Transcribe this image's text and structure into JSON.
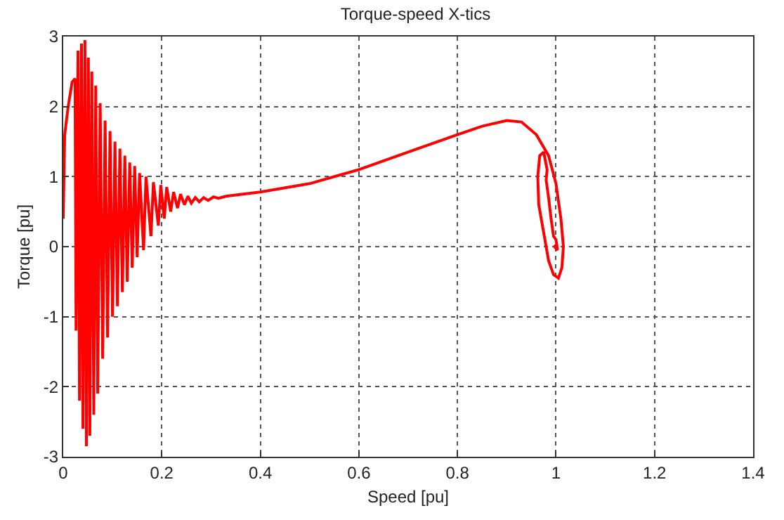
{
  "chart_data": {
    "type": "line",
    "title": "Torque-speed X-tics",
    "xlabel": "Speed [pu]",
    "ylabel": "Torque [pu]",
    "xlim": [
      0,
      1.4
    ],
    "xticks": [
      0,
      0.2,
      0.4,
      0.6,
      0.8,
      1,
      1.2,
      1.4
    ],
    "ylim": [
      -3,
      3
    ],
    "yticks": [
      -3,
      -2,
      -1,
      0,
      1,
      2,
      3
    ],
    "grid": true,
    "marker": "none",
    "line_style": "solid",
    "series": [
      {
        "color": "#ff0000",
        "x": [
          0,
          0.003,
          0.01,
          0.018,
          0.024,
          0.026,
          0.03,
          0.033,
          0.037,
          0.04,
          0.044,
          0.047,
          0.051,
          0.054,
          0.058,
          0.062,
          0.066,
          0.07,
          0.075,
          0.08,
          0.085,
          0.09,
          0.095,
          0.1,
          0.105,
          0.11,
          0.115,
          0.12,
          0.125,
          0.13,
          0.135,
          0.14,
          0.145,
          0.15,
          0.155,
          0.163,
          0.168,
          0.178,
          0.183,
          0.193,
          0.198,
          0.205,
          0.21,
          0.218,
          0.224,
          0.232,
          0.238,
          0.246,
          0.253,
          0.26,
          0.268,
          0.276,
          0.285,
          0.294,
          0.305,
          0.315,
          0.33,
          0.4,
          0.5,
          0.6,
          0.7,
          0.8,
          0.85,
          0.9,
          0.93,
          0.96,
          0.985,
          1.0,
          1.01,
          1.015,
          1.012,
          1.005,
          0.995,
          0.985,
          0.975,
          0.965,
          0.963,
          0.967,
          0.975,
          0.982,
          0.98,
          0.985,
          0.99,
          0.995,
          1.0,
          1.003,
          0.997,
          1.0
        ],
        "values": [
          0.4,
          1.6,
          2.0,
          2.35,
          2.4,
          -1.2,
          2.8,
          -2.2,
          2.9,
          -2.6,
          2.95,
          -2.85,
          2.7,
          -2.7,
          2.5,
          -2.4,
          2.3,
          -2.1,
          2.05,
          -1.6,
          1.8,
          -1.3,
          1.65,
          -1.0,
          1.5,
          -0.85,
          1.4,
          -0.65,
          1.3,
          -0.5,
          1.2,
          -0.3,
          1.15,
          -0.15,
          1.05,
          -0.05,
          1.0,
          0.15,
          0.92,
          0.3,
          0.88,
          0.4,
          0.85,
          0.5,
          0.78,
          0.55,
          0.75,
          0.6,
          0.72,
          0.62,
          0.7,
          0.64,
          0.7,
          0.66,
          0.71,
          0.69,
          0.72,
          0.78,
          0.9,
          1.1,
          1.35,
          1.6,
          1.72,
          1.8,
          1.78,
          1.6,
          1.3,
          0.9,
          0.4,
          0.0,
          -0.3,
          -0.45,
          -0.4,
          -0.2,
          0.2,
          0.6,
          1.0,
          1.3,
          1.35,
          1.1,
          0.95,
          0.7,
          0.4,
          0.15,
          0.1,
          -0.05,
          0.0,
          0.02
        ]
      }
    ]
  }
}
